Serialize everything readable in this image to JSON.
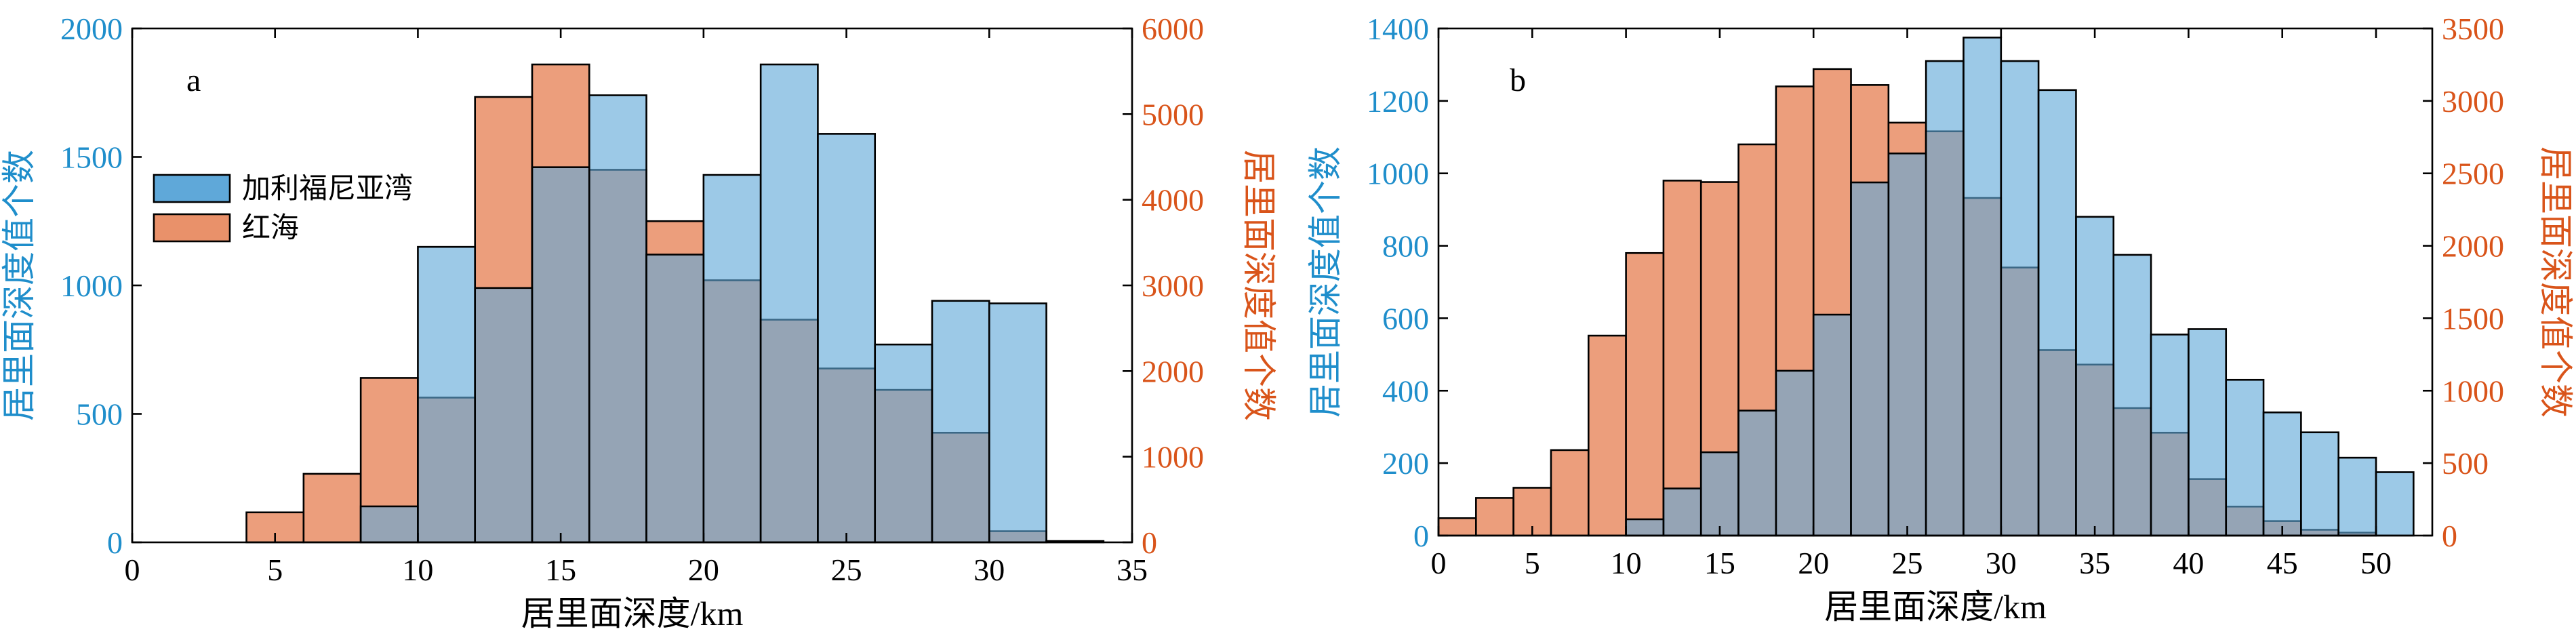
{
  "colors": {
    "gulf": "#5fa8d9",
    "red_sea": "#e9916a",
    "left_axis": "#1f8ecb",
    "right_axis": "#d9541a",
    "overlap": "#a8776a",
    "frame": "#000000"
  },
  "chart_data": [
    {
      "type": "bar",
      "panel_label": "a",
      "xlabel": "居里面深度/km",
      "ylabel_left": "居里面深度值个数",
      "ylabel_right": "居里面深度值个数",
      "xlim": [
        0,
        35
      ],
      "xticks": [
        0,
        5,
        10,
        15,
        20,
        25,
        30,
        35
      ],
      "ylim_left": [
        0,
        2000
      ],
      "yticks_left": [
        0,
        500,
        1000,
        1500,
        2000
      ],
      "ylim_right": [
        0,
        6000
      ],
      "yticks_right": [
        0,
        1000,
        2000,
        3000,
        4000,
        5000,
        6000
      ],
      "bin_width": 2,
      "legend": {
        "placement": "upper-left",
        "entries": [
          "加利福尼亚湾",
          "红海"
        ]
      },
      "series": [
        {
          "name": "加利福尼亚湾",
          "axis": "left",
          "bin_starts": [
            4,
            6,
            8,
            10,
            12,
            14,
            16,
            18,
            20,
            22,
            24,
            26,
            28,
            30,
            32
          ],
          "values": [
            0,
            0,
            140,
            1150,
            990,
            1460,
            1740,
            1120,
            1430,
            1860,
            1590,
            770,
            940,
            930,
            5
          ]
        },
        {
          "name": "红海",
          "axis": "right",
          "bin_starts": [
            4,
            6,
            8,
            10,
            12,
            14,
            16,
            18,
            20,
            22,
            24,
            26,
            28,
            30
          ],
          "values": [
            350,
            800,
            1920,
            1690,
            5200,
            5580,
            4350,
            3750,
            3060,
            2600,
            2030,
            1780,
            1280,
            130
          ]
        }
      ]
    },
    {
      "type": "bar",
      "panel_label": "b",
      "xlabel": "居里面深度/km",
      "ylabel_left": "居里面深度值个数",
      "ylabel_right": "居里面深度值个数",
      "xlim": [
        0,
        53
      ],
      "xticks": [
        0,
        5,
        10,
        15,
        20,
        25,
        30,
        35,
        40,
        45,
        50
      ],
      "ylim_left": [
        0,
        1400
      ],
      "yticks_left": [
        0,
        200,
        400,
        600,
        800,
        1000,
        1200,
        1400
      ],
      "ylim_right": [
        0,
        3500
      ],
      "yticks_right": [
        0,
        500,
        1000,
        1500,
        2000,
        2500,
        3000,
        3500
      ],
      "bin_width": 2,
      "series": [
        {
          "name": "加利福尼亚湾",
          "axis": "left",
          "bin_starts": [
            10,
            12,
            14,
            16,
            18,
            20,
            22,
            24,
            26,
            28,
            30,
            32,
            34,
            36,
            38,
            40,
            42,
            44,
            46,
            48,
            50
          ],
          "values": [
            45,
            130,
            230,
            345,
            455,
            610,
            975,
            1055,
            1310,
            1375,
            1310,
            1230,
            880,
            775,
            555,
            570,
            430,
            340,
            285,
            215,
            175
          ]
        },
        {
          "name": "红海",
          "axis": "right",
          "bin_starts": [
            0,
            2,
            4,
            6,
            8,
            10,
            12,
            14,
            16,
            18,
            20,
            22,
            24,
            26,
            28,
            30,
            32,
            34,
            36,
            38,
            40,
            42,
            44,
            46,
            48
          ],
          "values": [
            120,
            260,
            330,
            590,
            1380,
            1950,
            2450,
            2440,
            2700,
            3100,
            3220,
            3110,
            2850,
            2790,
            2330,
            1850,
            1280,
            1180,
            880,
            710,
            390,
            200,
            100,
            40,
            20
          ]
        }
      ]
    }
  ]
}
